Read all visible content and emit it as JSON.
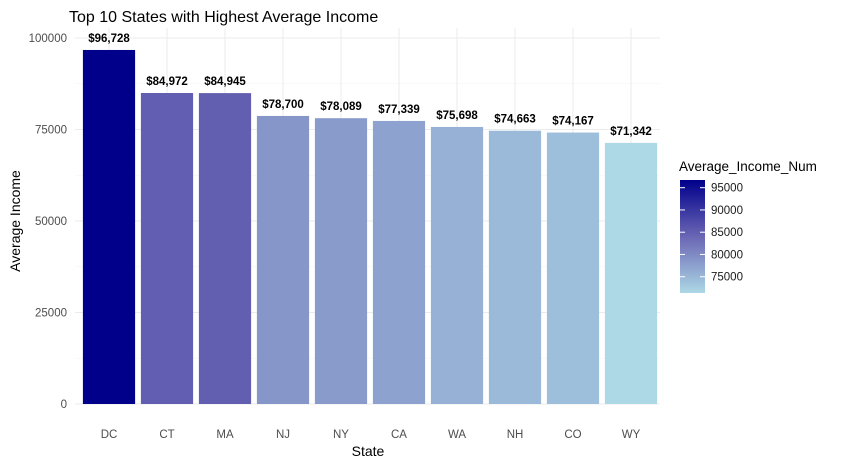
{
  "chart_data": {
    "type": "bar",
    "title": "Top 10 States with Highest Average Income",
    "xlabel": "State",
    "ylabel": "Average Income",
    "categories": [
      "DC",
      "CT",
      "MA",
      "NJ",
      "NY",
      "CA",
      "WA",
      "NH",
      "CO",
      "WY"
    ],
    "values": [
      96728,
      84972,
      84945,
      78700,
      78089,
      77339,
      75698,
      74663,
      74167,
      71342
    ],
    "data_labels": [
      "$96,728",
      "$84,972",
      "$84,945",
      "$78,700",
      "$78,089",
      "$77,339",
      "$75,698",
      "$74,663",
      "$74,167",
      "$71,342"
    ],
    "ylim": [
      0,
      100000
    ],
    "yticks": [
      0,
      25000,
      50000,
      75000,
      100000
    ],
    "ytick_labels": [
      "0",
      "25000",
      "50000",
      "75000",
      "100000"
    ],
    "grid": true,
    "legend": {
      "title": "Average_Income_Num",
      "placement": "right",
      "type": "colorbar",
      "ticks": [
        75000,
        80000,
        85000,
        90000,
        95000
      ],
      "tick_labels": [
        "75000",
        "80000",
        "85000",
        "90000",
        "95000"
      ],
      "color_low": "#add8e6",
      "color_high": "#00008b",
      "range": [
        71342,
        96728
      ]
    }
  }
}
